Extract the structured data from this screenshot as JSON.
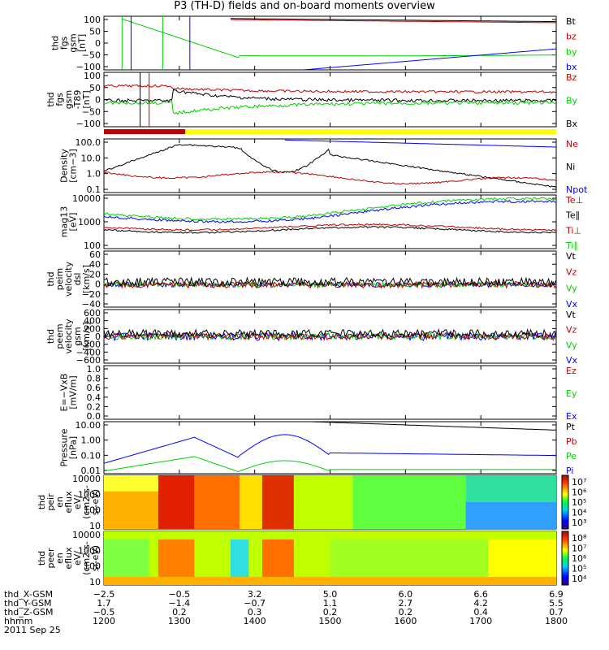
{
  "title": "P3 (TH-D) fields and on-board moments overview",
  "colors": {
    "black": "#000000",
    "red": "#c00000",
    "green": "#00d000",
    "blue": "#0000ff",
    "yellow": "#ffff00"
  },
  "chart_data": [
    {
      "type": "line",
      "panel": "fgs_gsm",
      "ylabel": [
        "thd",
        "fgs",
        "gsm",
        "[nT]"
      ],
      "yticks": [
        "100",
        "50",
        "0",
        "−50",
        "−100"
      ],
      "ylim": [
        -100,
        100
      ],
      "legend": [
        "Bt",
        "bz",
        "by",
        "bx"
      ]
    },
    {
      "type": "line",
      "panel": "fgs_gsm_hp",
      "ylabel": [
        "thd",
        "fgs",
        "gsm",
        "-T89",
        "[nT]"
      ],
      "yticks": [
        "100",
        "50",
        "0",
        "−50",
        "−100"
      ],
      "ylim": [
        -120,
        100
      ],
      "legend": [
        "Bz",
        "By",
        "Bx"
      ]
    },
    {
      "type": "line",
      "panel": "density",
      "ylabel": [
        "Density",
        "[cm−3]"
      ],
      "yticks": [
        "100.0",
        "10.0",
        "1.0",
        "0.1"
      ],
      "ylim": [
        0.08,
        300
      ],
      "log": true,
      "legend": [
        "Ne",
        "Ni",
        "Npot"
      ]
    },
    {
      "type": "line",
      "panel": "temperature",
      "ylabel": [
        "mag13",
        "[eV]"
      ],
      "yticks": [
        "10000",
        "1000",
        "100"
      ],
      "ylim": [
        40,
        10000
      ],
      "log": true,
      "legend": [
        "Te⊥",
        "Te∥",
        "Ti⊥",
        "Ti∥"
      ]
    },
    {
      "type": "line",
      "panel": "velocity_dsl",
      "ylabel": [
        "thd",
        "peim",
        "velocity",
        "dsl",
        "[km/s]"
      ],
      "yticks": [
        "60",
        "40",
        "20",
        "0",
        "−20",
        "−40"
      ],
      "ylim": [
        -40,
        60
      ],
      "legend": [
        "Vt",
        "Vz",
        "Vy",
        "Vx"
      ]
    },
    {
      "type": "line",
      "panel": "velocity_gsm",
      "ylabel": [
        "thd",
        "peem",
        "velocity",
        "gsm",
        "[km/s]"
      ],
      "yticks": [
        "600",
        "400",
        "200",
        "0",
        "−200",
        "−400",
        "−600"
      ],
      "ylim": [
        -600,
        600
      ],
      "legend": [
        "Vt",
        "Vz",
        "Vy",
        "Vx"
      ]
    },
    {
      "type": "line",
      "panel": "efield",
      "ylabel": [
        "E=−VxB",
        "[mV/m]"
      ],
      "yticks": [
        "1.0",
        "0.8",
        "0.6",
        "0.4",
        "0.2",
        "0.0"
      ],
      "ylim": [
        0,
        1
      ],
      "legend": [
        "Ez",
        "Ey",
        "Ex"
      ]
    },
    {
      "type": "line",
      "panel": "pressure",
      "ylabel": [
        "Pressure",
        "[nPa]"
      ],
      "yticks": [
        "10.00",
        "1.00",
        "0.10",
        "0.01"
      ],
      "ylim": [
        0.01,
        20
      ],
      "log": true,
      "legend": [
        "Pt",
        "Pb",
        "Pe",
        "Pi"
      ]
    },
    {
      "type": "heatmap",
      "panel": "ion_spectrogram",
      "ylabel": [
        "thd",
        "peir",
        "en",
        "eflux",
        "eV/",
        "(cm2-s-",
        "sr-eV)"
      ],
      "yticks": [
        "10000",
        "1000",
        "100",
        "10"
      ],
      "cbar_ticks": [
        "10⁷",
        "10⁶",
        "10⁵",
        "10⁴",
        "10³"
      ]
    },
    {
      "type": "heatmap",
      "panel": "electron_spectrogram",
      "ylabel": [
        "thd",
        "peer",
        "en",
        "eflux",
        "eV/",
        "(cm2-s-",
        "sr-eV)"
      ],
      "yticks": [
        "10000",
        "1000",
        "100",
        "10"
      ],
      "cbar_ticks": [
        "10⁸",
        "10⁷",
        "10⁶",
        "10⁵",
        "10⁴"
      ]
    }
  ],
  "xaxis": {
    "rows": [
      {
        "label": "thd_X-GSM",
        "values": [
          "−2.5",
          "−0.5",
          "3.2",
          "5.0",
          "6.0",
          "6.6",
          "6.9"
        ]
      },
      {
        "label": "thd_Y-GSM",
        "values": [
          "1.7",
          "−1.4",
          "−0.7",
          "1.1",
          "2.7",
          "4.2",
          "5.5"
        ]
      },
      {
        "label": "thd_Z-GSM",
        "values": [
          "−0.5",
          "0.2",
          "0.3",
          "0.2",
          "0.2",
          "0.4",
          "0.7"
        ]
      },
      {
        "label": "hhmm",
        "values": [
          "1200",
          "1300",
          "1400",
          "1500",
          "1600",
          "1700",
          "1800"
        ]
      }
    ],
    "date": "2011 Sep 25"
  }
}
